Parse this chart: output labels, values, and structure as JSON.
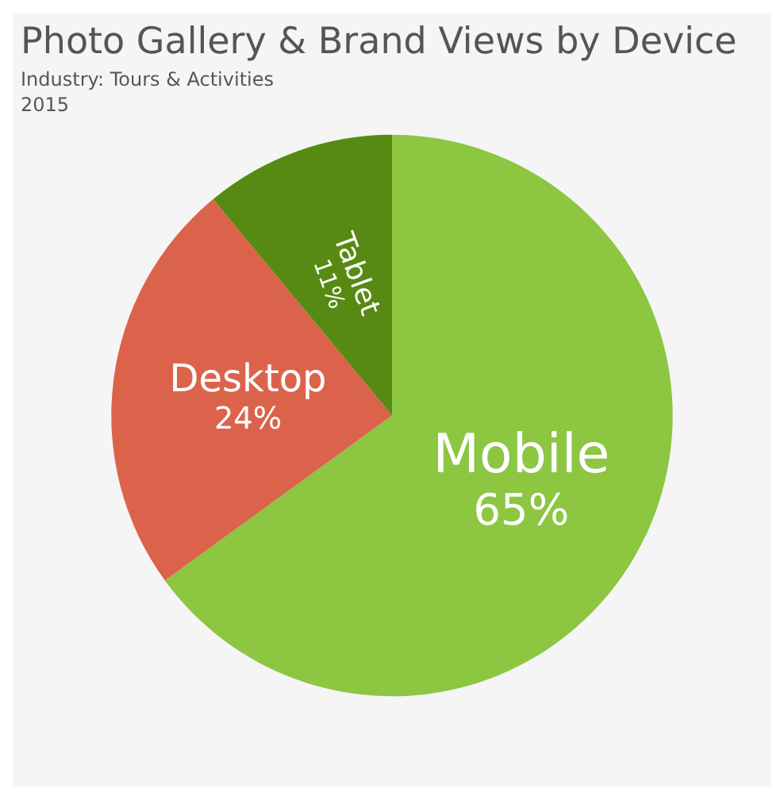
{
  "chart_data": {
    "type": "pie",
    "title": "Photo Gallery & Brand Views by Device",
    "subtitle": "Industry: Tours & Activities",
    "annotations": [
      "2015"
    ],
    "categories": [
      "Mobile",
      "Desktop",
      "Tablet"
    ],
    "values": [
      65,
      24,
      11
    ],
    "value_labels": [
      "65%",
      "24%",
      "11%"
    ],
    "colors": [
      "#8dc641",
      "#dc634b",
      "#578a12"
    ],
    "legend": false
  }
}
